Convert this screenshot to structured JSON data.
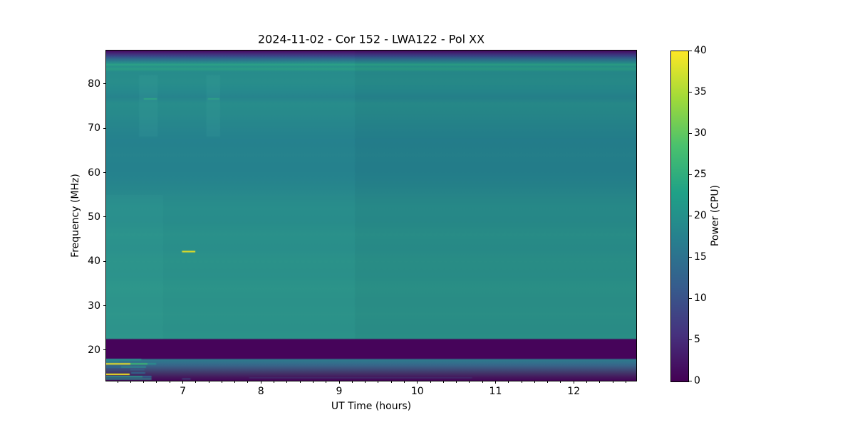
{
  "chart_data": {
    "type": "heatmap",
    "title": "2024-11-02 - Cor 152 - LWA122 - Pol XX",
    "xlabel": "UT Time (hours)",
    "ylabel": "Frequency (MHz)",
    "colorbar_label": "Power (CPU)",
    "colormap": "viridis",
    "x_range": [
      6.02,
      12.8
    ],
    "y_range": [
      13.1,
      87.5
    ],
    "colorbar_range": [
      0,
      40
    ],
    "x_ticks": [
      7,
      8,
      9,
      10,
      11,
      12
    ],
    "x_minor_step": 0.1666667,
    "y_ticks": [
      20,
      30,
      40,
      50,
      60,
      70,
      80
    ],
    "colorbar_ticks": [
      0,
      5,
      10,
      15,
      20,
      25,
      30,
      35,
      40
    ],
    "colorbar_stops": [
      {
        "offset": 0.0,
        "color": "#440154"
      },
      {
        "offset": 0.143,
        "color": "#46327e"
      },
      {
        "offset": 0.286,
        "color": "#365c8d"
      },
      {
        "offset": 0.429,
        "color": "#277f8e"
      },
      {
        "offset": 0.571,
        "color": "#1fa187"
      },
      {
        "offset": 0.714,
        "color": "#4ac16d"
      },
      {
        "offset": 0.857,
        "color": "#a0da39"
      },
      {
        "offset": 1.0,
        "color": "#fde725"
      }
    ],
    "background_freq_gradient": [
      {
        "f": 87.5,
        "color": "#46065c"
      },
      {
        "f": 87.0,
        "color": "#452273"
      },
      {
        "f": 86.4,
        "color": "#3d3e86"
      },
      {
        "f": 85.8,
        "color": "#32618d"
      },
      {
        "f": 85.1,
        "color": "#2a7f8d"
      },
      {
        "f": 84.6,
        "color": "#28918a"
      },
      {
        "f": 84.3,
        "color": "#2da584"
      },
      {
        "f": 84.0,
        "color": "#28918a"
      },
      {
        "f": 83.3,
        "color": "#2b9c86"
      },
      {
        "f": 82.7,
        "color": "#278b8c"
      },
      {
        "f": 80.5,
        "color": "#288e8b"
      },
      {
        "f": 78.5,
        "color": "#268a8d"
      },
      {
        "f": 77.0,
        "color": "#26848d"
      },
      {
        "f": 75.5,
        "color": "#288d8b"
      },
      {
        "f": 72.5,
        "color": "#27898c"
      },
      {
        "f": 70.0,
        "color": "#26858d"
      },
      {
        "f": 67.0,
        "color": "#25818e"
      },
      {
        "f": 64.0,
        "color": "#26838d"
      },
      {
        "f": 61.0,
        "color": "#25818d"
      },
      {
        "f": 58.0,
        "color": "#26848d"
      },
      {
        "f": 55.0,
        "color": "#28898c"
      },
      {
        "f": 52.0,
        "color": "#298e8b"
      },
      {
        "f": 49.0,
        "color": "#288c8b"
      },
      {
        "f": 46.0,
        "color": "#2a918a"
      },
      {
        "f": 43.0,
        "color": "#298e8b"
      },
      {
        "f": 40.0,
        "color": "#2b9289"
      },
      {
        "f": 37.0,
        "color": "#2a908a"
      },
      {
        "f": 34.0,
        "color": "#2c9489"
      },
      {
        "f": 31.0,
        "color": "#2b9189"
      },
      {
        "f": 28.0,
        "color": "#2c9389"
      },
      {
        "f": 25.0,
        "color": "#2b9089"
      },
      {
        "f": 22.55,
        "color": "#2c9489"
      },
      {
        "f": 22.45,
        "color": "#46045a"
      },
      {
        "f": 18.1,
        "color": "#46045a"
      },
      {
        "f": 17.9,
        "color": "#2e7b8c"
      },
      {
        "f": 17.1,
        "color": "#33708d"
      },
      {
        "f": 16.3,
        "color": "#3a5f86"
      },
      {
        "f": 15.2,
        "color": "#41406f"
      },
      {
        "f": 14.0,
        "color": "#451b5e"
      },
      {
        "f": 13.1,
        "color": "#440458"
      }
    ],
    "features": [
      {
        "t0": 6.99,
        "t1": 7.16,
        "f": 42.2,
        "h": 2,
        "color": "#f3e51e",
        "alpha": 1
      },
      {
        "t0": 6.5,
        "t1": 6.67,
        "f": 76.6,
        "h": 2,
        "color": "#30a783",
        "alpha": 0.9
      },
      {
        "t0": 7.32,
        "t1": 7.47,
        "f": 76.6,
        "h": 2,
        "color": "#30a783",
        "alpha": 0.75
      },
      {
        "t0": 6.02,
        "t1": 6.47,
        "f": 17.85,
        "h": 2.5,
        "color": "#2b8f8d",
        "alpha": 1
      },
      {
        "t0": 6.02,
        "t1": 6.18,
        "f": 17.35,
        "h": 2,
        "color": "#2e838d",
        "alpha": 0.9
      },
      {
        "t0": 6.02,
        "t1": 6.33,
        "f": 16.9,
        "h": 2,
        "color": "#f6e720",
        "alpha": 1
      },
      {
        "t0": 6.33,
        "t1": 6.55,
        "f": 16.9,
        "h": 2,
        "color": "#3fbc71",
        "alpha": 1
      },
      {
        "t0": 6.55,
        "t1": 6.66,
        "f": 16.9,
        "h": 2,
        "color": "#2b8f8d",
        "alpha": 1
      },
      {
        "t0": 6.02,
        "t1": 6.21,
        "f": 16.2,
        "h": 2.5,
        "color": "#31688e",
        "alpha": 1
      },
      {
        "t0": 6.21,
        "t1": 6.53,
        "f": 16.2,
        "h": 2.5,
        "color": "#2e7f8d",
        "alpha": 1
      },
      {
        "t0": 6.33,
        "t1": 6.51,
        "f": 15.6,
        "h": 2,
        "color": "#355f8a",
        "alpha": 0.9
      },
      {
        "t0": 6.02,
        "t1": 6.32,
        "f": 14.55,
        "h": 2,
        "color": "#f6e720",
        "alpha": 1
      },
      {
        "t0": 6.34,
        "t1": 6.52,
        "f": 14.85,
        "h": 2,
        "color": "#31688e",
        "alpha": 0.9
      },
      {
        "t0": 6.02,
        "t1": 6.49,
        "f": 14.0,
        "h": 2.5,
        "color": "#2b8f8d",
        "alpha": 1
      },
      {
        "t0": 6.49,
        "t1": 6.6,
        "f": 14.0,
        "h": 2.5,
        "color": "#31688e",
        "alpha": 1
      },
      {
        "t0": 6.02,
        "t1": 6.6,
        "f": 13.5,
        "h": 2,
        "color": "#2e8a8d",
        "alpha": 1
      },
      {
        "t0": 6.99,
        "t1": 7.1,
        "f": 13.5,
        "h": 2,
        "color": "#3a5c88",
        "alpha": 0.6
      },
      {
        "t0": 7.85,
        "t1": 10.7,
        "f": 13.75,
        "h": 1.5,
        "color": "#3b5a87",
        "alpha": 0.35
      }
    ],
    "vertical_bands": [
      {
        "t0": 6.44,
        "t1": 6.68,
        "f0": 68,
        "f1": 82,
        "color": "#7ef5d8",
        "alpha": 0.05
      },
      {
        "t0": 7.3,
        "t1": 7.48,
        "f0": 68,
        "f1": 82,
        "color": "#7ef5d8",
        "alpha": 0.05
      },
      {
        "t0": 6.02,
        "t1": 6.75,
        "f0": 22.5,
        "f1": 55,
        "color": "#8effe0",
        "alpha": 0.03
      },
      {
        "t0": 9.2,
        "t1": 12.8,
        "f0": 22.5,
        "f1": 87.5,
        "color": "#001e3c",
        "alpha": 0.04
      }
    ]
  }
}
